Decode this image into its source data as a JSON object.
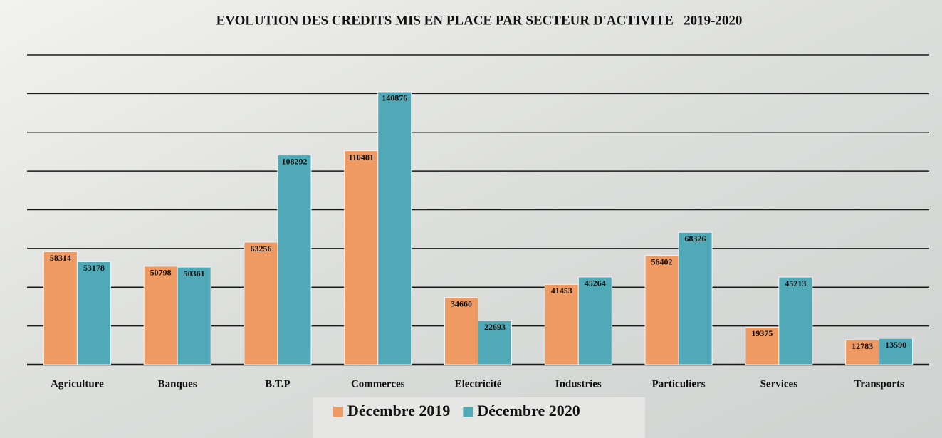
{
  "chart_data": {
    "type": "bar",
    "title": "EVOLUTION DES CREDITS MIS EN PLACE PAR SECTEUR D'ACTIVITE   2019-2020",
    "categories": [
      "Agriculture",
      "Banques",
      "B.T.P",
      "Commerces",
      "Electricité",
      "Industries",
      "Particuliers",
      "Services",
      "Transports"
    ],
    "series": [
      {
        "name": "Décembre 2019",
        "color": "#ef9a62",
        "values": [
          58314,
          50798,
          63256,
          110481,
          34660,
          41453,
          56402,
          19375,
          12783
        ]
      },
      {
        "name": "Décembre 2020",
        "color": "#4fa9b7",
        "values": [
          53178,
          50361,
          108292,
          140876,
          22693,
          45264,
          68326,
          45213,
          13590
        ]
      }
    ],
    "ylim": [
      0,
      160000
    ],
    "yticks": [
      0,
      20000,
      40000,
      60000,
      80000,
      100000,
      120000,
      140000,
      160000
    ],
    "grid": true,
    "legend": "bottom"
  }
}
